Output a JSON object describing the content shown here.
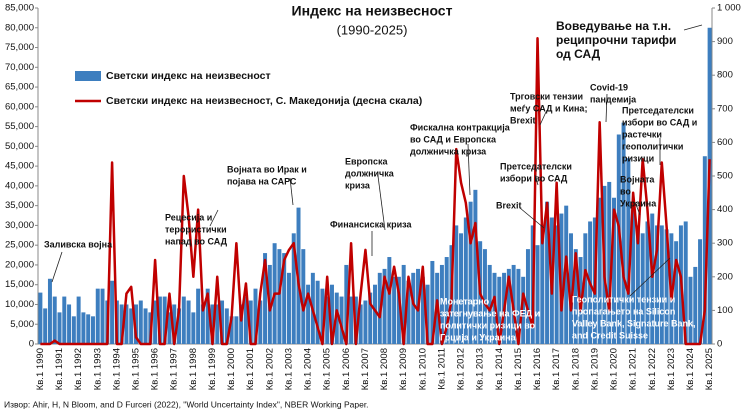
{
  "chart_data": {
    "type": "bar-line",
    "title": "Индекс на неизвесност",
    "subtitle": "(1990-2025)",
    "source": "Извор: Ahir, H, N Bloom, and D Furceri (2022), \"World Uncertainty Index\", NBER Working Paper.",
    "categories": [
      "Кв.1 1990",
      null,
      null,
      null,
      "Кв.1 1991",
      null,
      null,
      null,
      "Кв.1 1992",
      null,
      null,
      null,
      "Кв.1 1993",
      null,
      null,
      null,
      "Кв.1 1994",
      null,
      null,
      null,
      "Кв.1 1995",
      null,
      null,
      null,
      "Кв.1 1996",
      null,
      null,
      null,
      "Кв.1 1997",
      null,
      null,
      null,
      "Кв.1 1998",
      null,
      null,
      null,
      "Кв.1 1999",
      null,
      null,
      null,
      "Кв.1 2000",
      null,
      null,
      null,
      "Кв.1 2001",
      null,
      null,
      null,
      "Кв.1 2002",
      null,
      null,
      null,
      "Кв.1 2003",
      null,
      null,
      null,
      "Кв.1 2004",
      null,
      null,
      null,
      "Кв.1 2005",
      null,
      null,
      null,
      "Кв.1 2006",
      null,
      null,
      null,
      "Кв.1 2007",
      null,
      null,
      null,
      "Кв.1 2008",
      null,
      null,
      null,
      "Кв.1 2009",
      null,
      null,
      null,
      "Кв.1 2010",
      null,
      null,
      null,
      "Кв.1 2011",
      null,
      null,
      null,
      "Кв.1 2012",
      null,
      null,
      null,
      "Кв.1 2013",
      null,
      null,
      null,
      "Кв.1 2014",
      null,
      null,
      null,
      "Кв.1 2015",
      null,
      null,
      null,
      "Кв.1 2016",
      null,
      null,
      null,
      "Кв.1 2017",
      null,
      null,
      null,
      "Кв.1 2018",
      null,
      null,
      null,
      "Кв.1 2019",
      null,
      null,
      null,
      "Кв.1 2020",
      null,
      null,
      null,
      "Кв.1 2021",
      null,
      null,
      null,
      "Кв.1 2022",
      null,
      null,
      null,
      "Кв.1 2023",
      null,
      null,
      null,
      "Кв.1 2024",
      null,
      null,
      null,
      "Кв.1 2025"
    ],
    "series": [
      {
        "name": "Светски индекс на неизвесност",
        "color": "#3d7ebf",
        "type": "bar",
        "values": [
          13000,
          9000,
          16500,
          12000,
          8000,
          12000,
          10000,
          7000,
          12000,
          8000,
          7500,
          7000,
          14000,
          14000,
          11000,
          16000,
          11000,
          10000,
          10000,
          9000,
          10000,
          11000,
          9000,
          8000,
          11000,
          12000,
          12000,
          8000,
          10000,
          9000,
          12000,
          11000,
          8000,
          14000,
          10000,
          14000,
          10000,
          10000,
          11000,
          9000,
          7000,
          7000,
          10000,
          12000,
          11000,
          14000,
          11000,
          23000,
          20000,
          25500,
          24000,
          23000,
          18000,
          28000,
          34500,
          24000,
          15000,
          18000,
          16000,
          14000,
          12000,
          15000,
          13000,
          12000,
          20000,
          12000,
          12000,
          10000,
          11000,
          13000,
          15000,
          18000,
          19000,
          22000,
          17000,
          17000,
          20000,
          16000,
          18000,
          19000,
          17000,
          15000,
          21000,
          18000,
          20000,
          22000,
          25000,
          30000,
          28000,
          32000,
          36000,
          39000,
          26000,
          24000,
          20000,
          18000,
          17000,
          18000,
          19000,
          20000,
          19000,
          17000,
          24000,
          30000,
          25000,
          30000,
          36000,
          32000,
          30000,
          33000,
          35000,
          28000,
          24000,
          22000,
          28000,
          31000,
          32000,
          37000,
          40000,
          41000,
          37000,
          53000,
          56000,
          47000,
          34000,
          30000,
          28000,
          31000,
          33000,
          30000,
          30000,
          29000,
          28000,
          26000,
          30000,
          31000,
          17000,
          19500,
          26500,
          47500,
          80000
        ]
      },
      {
        "name": "Светски индекс на неизвесност, С. Македонија (десна скала)",
        "color": "#c00000",
        "type": "line",
        "axis": "y2",
        "values": [
          0,
          0,
          0,
          10,
          0,
          0,
          0,
          0,
          0,
          0,
          0,
          0,
          0,
          0,
          0,
          540,
          0,
          0,
          150,
          170,
          20,
          0,
          0,
          0,
          250,
          0,
          0,
          150,
          0,
          100,
          500,
          380,
          200,
          400,
          100,
          150,
          0,
          200,
          0,
          0,
          80,
          300,
          70,
          180,
          0,
          0,
          150,
          250,
          100,
          150,
          150,
          250,
          280,
          300,
          180,
          100,
          150,
          100,
          50,
          0,
          200,
          0,
          100,
          50,
          0,
          300,
          0,
          150,
          280,
          120,
          100,
          80,
          200,
          150,
          230,
          150,
          0,
          200,
          120,
          100,
          230,
          0,
          0,
          130,
          0,
          50,
          130,
          580,
          480,
          420,
          300,
          360,
          150,
          120,
          100,
          140,
          0,
          100,
          200,
          100,
          0,
          150,
          100,
          50,
          910,
          300,
          420,
          150,
          480,
          100,
          260,
          100,
          270,
          100,
          220,
          180,
          150,
          660,
          200,
          100,
          400,
          350,
          200,
          150,
          450,
          300,
          550,
          400,
          200,
          280,
          540,
          350,
          130,
          250,
          200,
          0,
          0,
          0,
          0,
          100,
          550
        ]
      }
    ],
    "ylim": [
      0,
      85000
    ],
    "yticks": [
      0,
      {
        "value": 5000,
        "label": "5,000"
      },
      {
        "value": 10000,
        "label": "10,000"
      },
      {
        "value": 15000,
        "label": "15,000"
      },
      {
        "value": 20000,
        "label": "20,000"
      },
      {
        "value": 25000,
        "label": "25,000"
      },
      {
        "value": 30000,
        "label": "30,000"
      },
      {
        "value": 35000,
        "label": "35,000"
      },
      {
        "value": 40000,
        "label": "40,000"
      },
      {
        "value": 45000,
        "label": "45,000"
      },
      {
        "value": 50000,
        "label": "50,000"
      },
      {
        "value": 55000,
        "label": "55,000"
      },
      {
        "value": 60000,
        "label": "60,000"
      },
      {
        "value": 65000,
        "label": "65,000"
      },
      {
        "value": 70000,
        "label": "70,000"
      },
      {
        "value": 75000,
        "label": "75,000"
      },
      {
        "value": 80000,
        "label": "80,000"
      },
      {
        "value": 85000,
        "label": "85,000"
      }
    ],
    "y2lim": [
      0,
      1000
    ],
    "y2ticks": [
      0,
      100,
      200,
      300,
      400,
      500,
      600,
      700,
      800,
      900,
      {
        "value": 1000,
        "label": "1 000"
      }
    ],
    "legend": "upper left",
    "annotations": [
      {
        "lines": [
          "Заливска војна"
        ]
      },
      {
        "lines": [
          "Рецесија и",
          "терористички",
          "напад во САД"
        ]
      },
      {
        "lines": [
          "Војната во Ирак и",
          "појава на САРС"
        ]
      },
      {
        "lines": [
          "Финансиска криза"
        ]
      },
      {
        "lines": [
          "Европска",
          "должничка",
          "криза"
        ]
      },
      {
        "lines": [
          "Фискална контракција",
          "во САД и Европска",
          "должничка криза"
        ]
      },
      {
        "lines": [
          "Монетарно",
          "затегнување на ФЕД и",
          "политички ризици во",
          "Грција и Украина"
        ]
      },
      {
        "lines": [
          "Brexit"
        ]
      },
      {
        "lines": [
          "Претседателски",
          "избори во САД"
        ]
      },
      {
        "lines": [
          "Трговски тензии",
          "меѓу САД и Кина;",
          "Brexit"
        ]
      },
      {
        "lines": [
          "Covid-19",
          "пандемија"
        ]
      },
      {
        "lines": [
          "Претседателски",
          "избори во САД и",
          "растечки",
          "геополитички",
          "ризици"
        ]
      },
      {
        "lines": [
          "Војната",
          "во",
          "Украина"
        ]
      },
      {
        "lines": [
          "Геополитички тензии и",
          "пропагањето на Silicon",
          "Valley Bank, Signature Bank,",
          "and Credit Suisse"
        ]
      },
      {
        "lines": [
          "Воведување на т.н.",
          "реципрочни тарифи",
          "од САД"
        ]
      }
    ]
  }
}
